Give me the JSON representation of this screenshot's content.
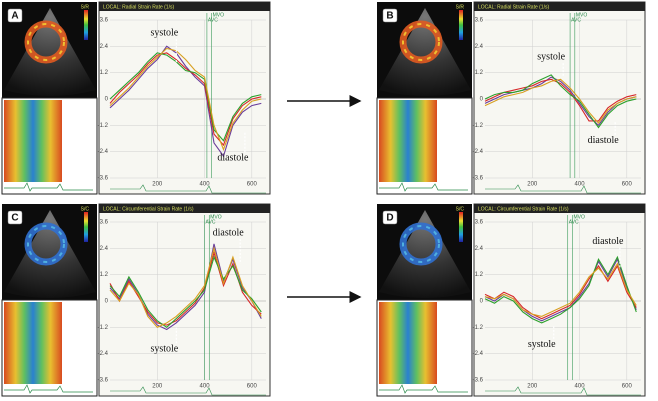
{
  "chart_data": [
    {
      "type": "line",
      "panel": "A",
      "title": "LOCAL: Radial Strain Rate (1/s)",
      "colorbar": "S/R",
      "annotations": [
        "systole",
        "diastole"
      ],
      "events": [
        {
          "label": "MVO",
          "x": 430
        },
        {
          "label": "AVC",
          "x": 410
        }
      ],
      "x": [
        0,
        40,
        80,
        120,
        160,
        200,
        240,
        280,
        320,
        360,
        400,
        440,
        480,
        520,
        560,
        600,
        640
      ],
      "xlim": [
        0,
        660
      ],
      "xticks": [
        200,
        400,
        600
      ],
      "ylim": [
        -3.6,
        3.6
      ],
      "yticks": [
        3.6,
        2.4,
        1.2,
        0,
        -1.2,
        -2.4,
        -3.6
      ],
      "grid": true,
      "series": [
        {
          "color": "#6a3d9a",
          "values": [
            -0.4,
            0.0,
            0.4,
            0.9,
            1.4,
            1.8,
            2.4,
            2.1,
            1.5,
            1.0,
            0.6,
            -2.0,
            -2.6,
            -1.2,
            -0.6,
            -0.3,
            -0.2
          ]
        },
        {
          "color": "#d62728",
          "values": [
            -0.2,
            0.3,
            0.7,
            1.1,
            1.6,
            2.0,
            2.1,
            1.8,
            1.4,
            1.1,
            0.7,
            -1.6,
            -2.1,
            -0.9,
            -0.3,
            0.0,
            0.1
          ]
        },
        {
          "color": "#2ca02c",
          "values": [
            0.0,
            0.4,
            0.8,
            1.2,
            1.7,
            2.1,
            2.0,
            1.7,
            1.3,
            1.2,
            0.9,
            -1.4,
            -1.9,
            -0.8,
            -0.2,
            0.1,
            0.2
          ]
        },
        {
          "color": "#d8a020",
          "values": [
            -0.3,
            0.1,
            0.5,
            1.0,
            1.5,
            1.9,
            2.3,
            2.2,
            1.8,
            1.3,
            1.0,
            -1.2,
            -2.3,
            -1.1,
            -0.5,
            -0.1,
            0.0
          ]
        }
      ]
    },
    {
      "type": "line",
      "panel": "B",
      "title": "LOCAL: Radial Strain Rate (1/s)",
      "colorbar": "S/R",
      "annotations": [
        "systole",
        "diastole"
      ],
      "events": [
        {
          "label": "MVO",
          "x": 380
        },
        {
          "label": "AVC",
          "x": 360
        }
      ],
      "x": [
        0,
        40,
        80,
        120,
        160,
        200,
        240,
        280,
        320,
        360,
        400,
        440,
        480,
        520,
        560,
        600,
        640
      ],
      "xlim": [
        0,
        660
      ],
      "xticks": [
        200,
        400,
        600
      ],
      "ylim": [
        -3.6,
        3.6
      ],
      "yticks": [
        3.6,
        2.4,
        1.2,
        0,
        -1.2,
        -2.4,
        -3.6
      ],
      "grid": true,
      "series": [
        {
          "color": "#6a3d9a",
          "values": [
            -0.2,
            0.0,
            0.2,
            0.3,
            0.4,
            0.5,
            0.7,
            1.0,
            0.8,
            0.4,
            -0.2,
            -0.8,
            -1.2,
            -0.6,
            -0.2,
            0.0,
            0.1
          ]
        },
        {
          "color": "#d62728",
          "values": [
            -0.1,
            0.1,
            0.3,
            0.4,
            0.5,
            0.6,
            0.8,
            0.9,
            0.7,
            0.3,
            -0.3,
            -1.0,
            -1.0,
            -0.4,
            -0.1,
            0.1,
            0.2
          ]
        },
        {
          "color": "#2ca02c",
          "values": [
            0.0,
            0.2,
            0.3,
            0.3,
            0.4,
            0.7,
            0.9,
            1.1,
            0.6,
            0.2,
            -0.1,
            -0.7,
            -1.3,
            -0.7,
            -0.3,
            -0.1,
            0.0
          ]
        },
        {
          "color": "#d8a020",
          "values": [
            -0.3,
            -0.1,
            0.1,
            0.2,
            0.3,
            0.5,
            0.6,
            0.8,
            0.9,
            0.5,
            0.0,
            -0.6,
            -1.1,
            -0.5,
            -0.2,
            0.0,
            0.1
          ]
        }
      ]
    },
    {
      "type": "line",
      "panel": "C",
      "title": "LOCAL: Circumferential Strain Rate (1/s)",
      "colorbar": "S/C",
      "annotations": [
        "diastole",
        "systole"
      ],
      "events": [
        {
          "label": "MVO",
          "x": 420
        },
        {
          "label": "AVC",
          "x": 400
        }
      ],
      "x": [
        0,
        40,
        80,
        120,
        160,
        200,
        240,
        280,
        320,
        360,
        400,
        440,
        480,
        520,
        560,
        600,
        640
      ],
      "xlim": [
        0,
        660
      ],
      "xticks": [
        200,
        400,
        600
      ],
      "ylim": [
        -3.6,
        3.6
      ],
      "yticks": [
        3.6,
        2.4,
        1.2,
        0,
        -1.2,
        -2.4,
        -3.6
      ],
      "grid": true,
      "series": [
        {
          "color": "#6a3d9a",
          "values": [
            0.6,
            0.1,
            1.0,
            0.3,
            -0.6,
            -1.1,
            -1.3,
            -1.0,
            -0.6,
            -0.2,
            0.4,
            2.6,
            0.9,
            1.9,
            0.6,
            0.0,
            -0.8
          ]
        },
        {
          "color": "#d62728",
          "values": [
            0.8,
            0.0,
            0.9,
            0.2,
            -0.5,
            -1.0,
            -1.1,
            -0.9,
            -0.5,
            -0.1,
            0.6,
            2.2,
            0.7,
            1.7,
            0.4,
            -0.2,
            -0.6
          ]
        },
        {
          "color": "#2ca02c",
          "values": [
            0.7,
            0.2,
            1.1,
            0.4,
            -0.4,
            -0.9,
            -1.2,
            -0.8,
            -0.4,
            0.0,
            0.5,
            2.0,
            1.0,
            1.6,
            0.5,
            0.1,
            -0.5
          ]
        },
        {
          "color": "#d8a020",
          "values": [
            0.5,
            0.0,
            0.8,
            0.3,
            -0.7,
            -1.2,
            -1.0,
            -0.7,
            -0.3,
            0.1,
            0.7,
            2.4,
            0.8,
            2.0,
            0.7,
            0.0,
            -0.7
          ]
        }
      ]
    },
    {
      "type": "line",
      "panel": "D",
      "title": "LOCAL: Circumferential Strain Rate (1/s)",
      "colorbar": "S/C",
      "annotations": [
        "diastole",
        "systole"
      ],
      "events": [
        {
          "label": "MVO",
          "x": 370
        },
        {
          "label": "AVC",
          "x": 350
        }
      ],
      "x": [
        0,
        40,
        80,
        120,
        160,
        200,
        240,
        280,
        320,
        360,
        400,
        440,
        480,
        520,
        560,
        600,
        640
      ],
      "xlim": [
        0,
        660
      ],
      "xticks": [
        200,
        400,
        600
      ],
      "ylim": [
        -3.6,
        3.6
      ],
      "yticks": [
        3.6,
        2.4,
        1.2,
        0,
        -1.2,
        -2.4,
        -3.6
      ],
      "grid": true,
      "series": [
        {
          "color": "#6a3d9a",
          "values": [
            0.2,
            0.0,
            0.3,
            0.1,
            -0.4,
            -0.7,
            -0.9,
            -0.7,
            -0.5,
            -0.3,
            0.2,
            0.8,
            1.8,
            1.1,
            1.9,
            0.6,
            -0.4
          ]
        },
        {
          "color": "#d62728",
          "values": [
            0.3,
            0.1,
            0.4,
            0.2,
            -0.3,
            -0.6,
            -0.8,
            -0.6,
            -0.4,
            -0.2,
            0.3,
            1.0,
            1.6,
            0.9,
            1.6,
            0.4,
            -0.3
          ]
        },
        {
          "color": "#2ca02c",
          "values": [
            0.1,
            -0.1,
            0.2,
            0.0,
            -0.5,
            -0.8,
            -1.0,
            -0.8,
            -0.6,
            -0.3,
            0.1,
            0.7,
            1.9,
            1.2,
            2.0,
            0.7,
            -0.5
          ]
        },
        {
          "color": "#d8a020",
          "values": [
            0.2,
            0.1,
            0.3,
            0.1,
            -0.4,
            -0.6,
            -0.7,
            -0.5,
            -0.3,
            -0.1,
            0.4,
            1.1,
            1.5,
            1.0,
            1.7,
            0.5,
            -0.2
          ]
        }
      ]
    }
  ]
}
